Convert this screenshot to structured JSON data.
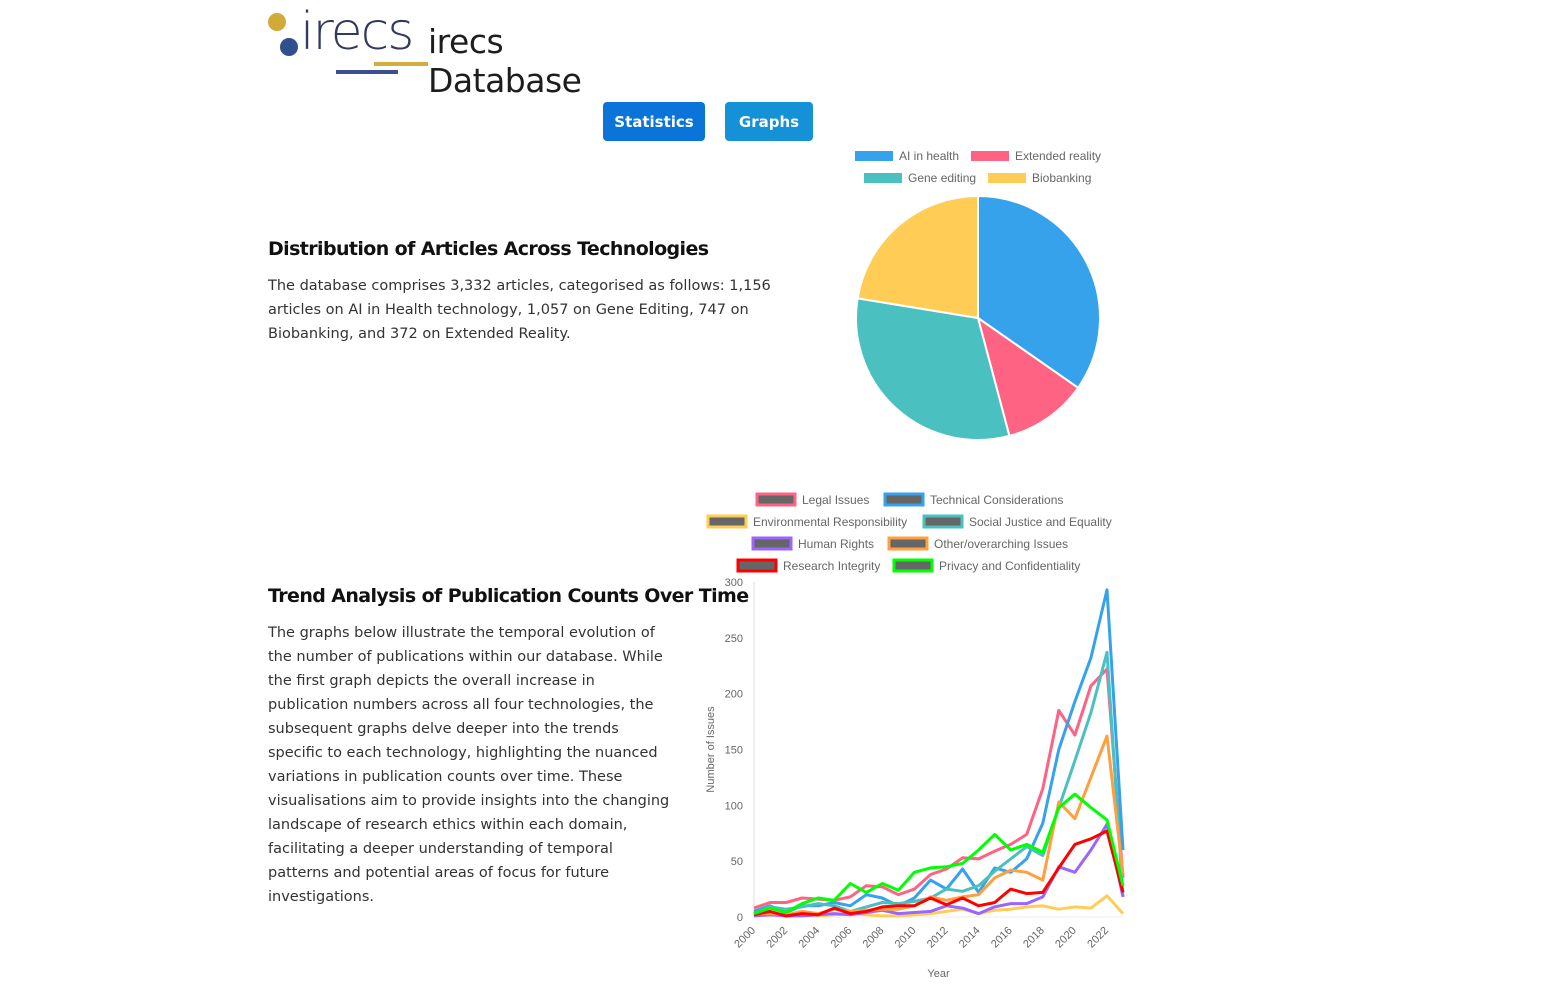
{
  "header": {
    "logo_text": "irecs",
    "title": "irecs Database"
  },
  "nav": {
    "statistics_label": "Statistics",
    "graphs_label": "Graphs"
  },
  "section1": {
    "heading": "Distribution of Articles Across Technologies",
    "text": "The database comprises 3,332 articles, categorised as follows: 1,156 articles on AI in Health technology, 1,057 on Gene Editing, 747 on Biobanking, and 372 on Extended Reality."
  },
  "section2": {
    "heading": "Trend Analysis of Publication Counts Over Time",
    "text": "The graphs below illustrate the temporal evolution of the number of publications within our database. While the first graph depicts the overall increase in publication numbers across all four technologies, the subsequent graphs delve deeper into the trends specific to each technology, highlighting the nuanced variations in publication counts over time. These visualisations aim to provide insights into the changing landscape of research ethics within each domain, facilitating a deeper understanding of temporal patterns and potential areas of focus for future investigations."
  },
  "chart_data": [
    {
      "type": "pie",
      "title": "",
      "legend_position": "top",
      "labels": [
        "AI in health",
        "Extended reality",
        "Gene editing",
        "Biobanking"
      ],
      "values": [
        1156,
        372,
        1057,
        747
      ],
      "colors": [
        "#36a2eb",
        "#ff6384",
        "#4bc0c0",
        "#ffcd56"
      ]
    },
    {
      "type": "line",
      "title": "",
      "xlabel": "Year",
      "ylabel": "Number of Issues",
      "ylim": [
        0,
        300
      ],
      "yticks": [
        0,
        50,
        100,
        150,
        200,
        250,
        300
      ],
      "xticks": [
        "2000",
        "2002",
        "2004",
        "2006",
        "2008",
        "2010",
        "2012",
        "2014",
        "2016",
        "2018",
        "2020",
        "2022"
      ],
      "x": [
        2000,
        2001,
        2002,
        2003,
        2004,
        2005,
        2006,
        2007,
        2008,
        2009,
        2010,
        2011,
        2012,
        2013,
        2014,
        2015,
        2016,
        2017,
        2018,
        2019,
        2020,
        2021,
        2022,
        2023
      ],
      "grid": "y-axis line only",
      "legend_position": "top",
      "series": [
        {
          "name": "Legal Issues",
          "color": "#ff6384",
          "values": [
            8,
            13,
            13,
            17,
            16,
            15,
            18,
            28,
            27,
            20,
            25,
            38,
            43,
            53,
            52,
            59,
            65,
            74,
            115,
            185,
            163,
            207,
            222,
            35
          ]
        },
        {
          "name": "Technical Considerations",
          "color": "#36a2eb",
          "values": [
            5,
            10,
            4,
            10,
            10,
            13,
            10,
            20,
            17,
            10,
            17,
            33,
            25,
            43,
            22,
            44,
            40,
            52,
            84,
            150,
            193,
            232,
            293,
            60
          ]
        },
        {
          "name": "Environmental Responsibility",
          "color": "#ffcd56",
          "values": [
            1,
            2,
            1,
            1,
            1,
            2,
            3,
            2,
            1,
            1,
            2,
            3,
            5,
            7,
            3,
            6,
            7,
            9,
            10,
            7,
            9,
            8,
            19,
            3
          ]
        },
        {
          "name": "Social Justice and Equality",
          "color": "#4bc0c0",
          "values": [
            3,
            9,
            7,
            9,
            12,
            10,
            5,
            9,
            13,
            12,
            14,
            17,
            25,
            23,
            28,
            41,
            52,
            63,
            55,
            98,
            140,
            183,
            237,
            18
          ]
        },
        {
          "name": "Human Rights",
          "color": "#9966ff",
          "values": [
            1,
            2,
            1,
            1,
            2,
            3,
            2,
            4,
            6,
            3,
            4,
            5,
            10,
            8,
            3,
            9,
            12,
            12,
            18,
            45,
            40,
            60,
            83,
            18
          ]
        },
        {
          "name": "Other/overarching Issues",
          "color": "#ff9f40",
          "values": [
            3,
            3,
            2,
            5,
            3,
            7,
            5,
            6,
            7,
            7,
            10,
            18,
            15,
            18,
            20,
            35,
            42,
            40,
            33,
            103,
            88,
            125,
            162,
            38
          ]
        },
        {
          "name": "Research Integrity",
          "color": "#ff0000",
          "values": [
            2,
            5,
            1,
            3,
            2,
            8,
            3,
            5,
            9,
            10,
            10,
            17,
            11,
            17,
            10,
            13,
            25,
            21,
            22,
            44,
            65,
            70,
            77,
            22
          ]
        },
        {
          "name": "Privacy and Confidentiality",
          "color": "#00ff00",
          "values": [
            3,
            8,
            4,
            12,
            17,
            15,
            30,
            22,
            30,
            24,
            40,
            44,
            45,
            48,
            60,
            74,
            60,
            65,
            58,
            98,
            110,
            98,
            87,
            28
          ]
        }
      ]
    }
  ]
}
